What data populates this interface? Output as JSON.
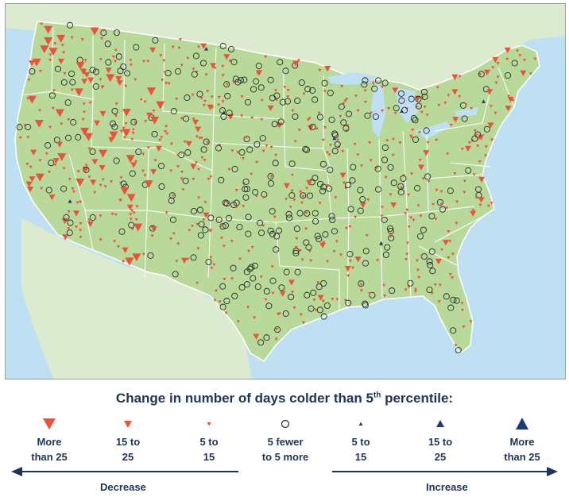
{
  "legend": {
    "title": "Change in number of days colder than 5",
    "title_sup": "th",
    "title_suffix": " percentile:",
    "items": [
      {
        "line1": "More",
        "line2": "than 25",
        "direction": "decrease",
        "size": "large"
      },
      {
        "line1": "15 to",
        "line2": "25",
        "direction": "decrease",
        "size": "medium"
      },
      {
        "line1": "5 to",
        "line2": "15",
        "direction": "decrease",
        "size": "small"
      },
      {
        "line1": "5 fewer",
        "line2": "to 5 more",
        "direction": "none",
        "size": "circle"
      },
      {
        "line1": "5 to",
        "line2": "15",
        "direction": "increase",
        "size": "small"
      },
      {
        "line1": "15 to",
        "line2": "25",
        "direction": "increase",
        "size": "medium"
      },
      {
        "line1": "More",
        "line2": "than 25",
        "direction": "increase",
        "size": "large"
      }
    ],
    "decrease_label": "Decrease",
    "increase_label": "Increase"
  },
  "colors": {
    "decrease": "#e8533a",
    "increase": "#1f3a7a",
    "no_change_stroke": "#2b2b2b",
    "land": "#b9d99a",
    "neighbor_land": "#dcebd0",
    "water": "#bfe0f2",
    "state_border": "#ffffff",
    "text": "#1f3558"
  }
}
